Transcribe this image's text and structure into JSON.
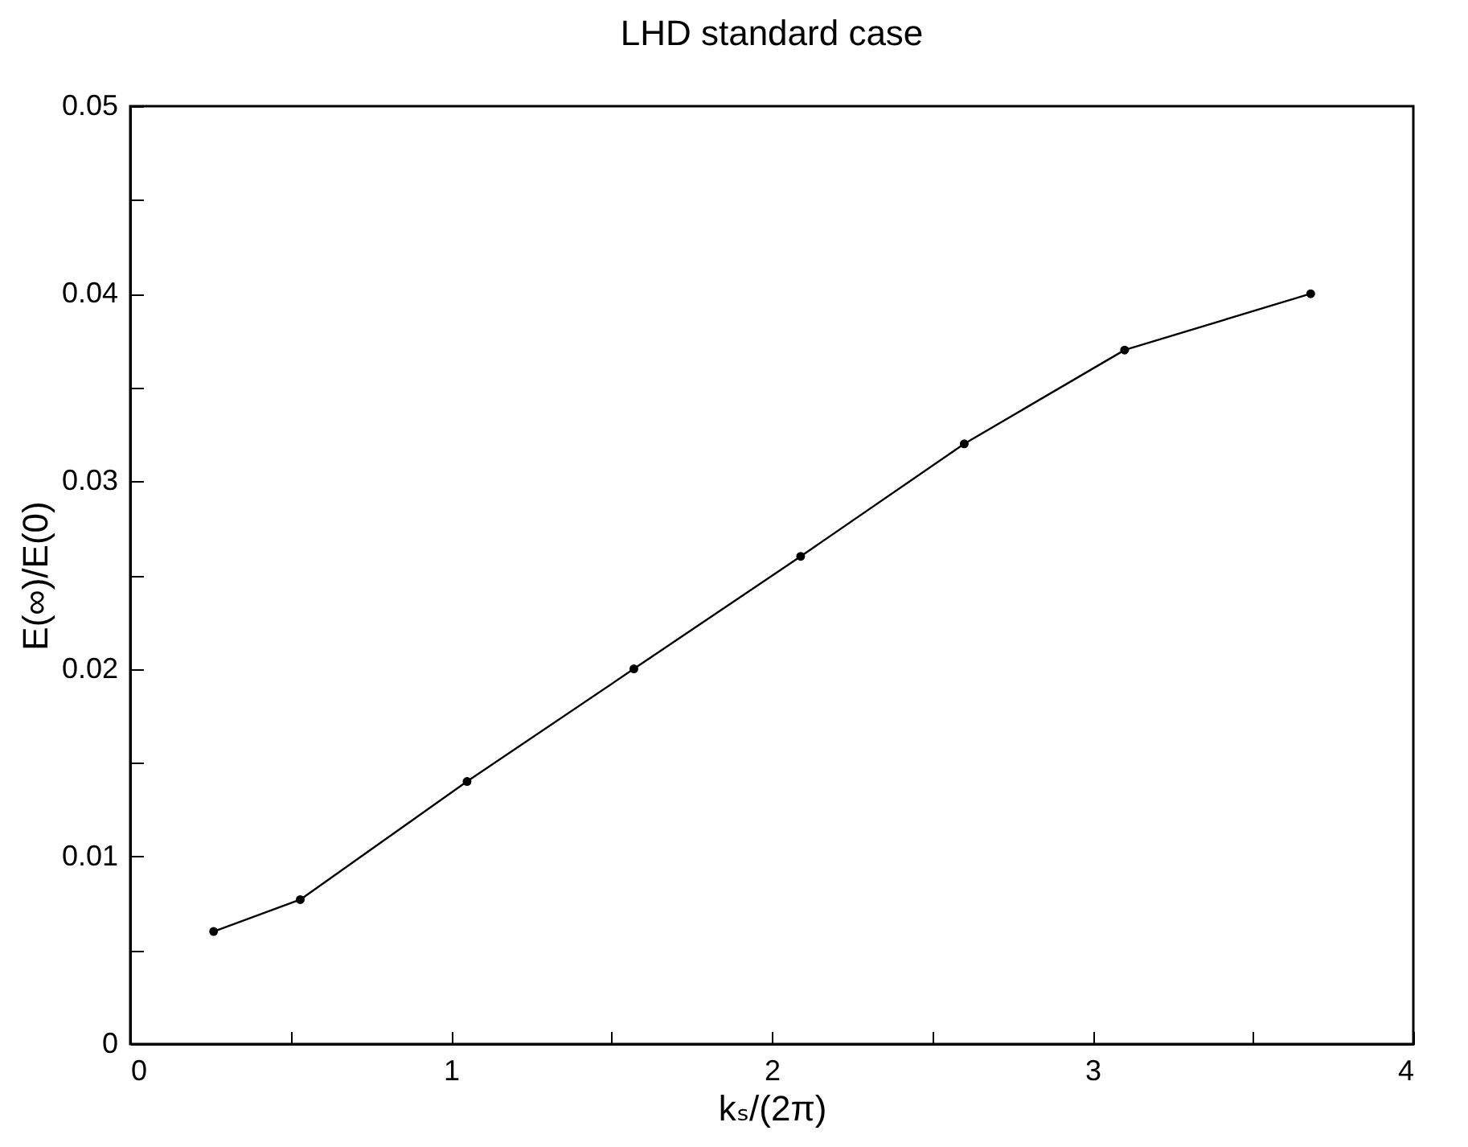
{
  "chart_data": {
    "type": "line",
    "title": "LHD standard case",
    "xlabel": "kₛ/(2π)",
    "ylabel": "E(∞)/E(0)",
    "x": [
      0.26,
      0.53,
      1.05,
      1.57,
      2.09,
      2.6,
      3.1,
      3.68
    ],
    "series": [
      {
        "color": "#000000",
        "values": [
          0.006,
          0.0077,
          0.014,
          0.02,
          0.026,
          0.032,
          0.037,
          0.04
        ]
      }
    ],
    "marker": "circle",
    "line_style": "solid",
    "grid": false,
    "legend": false,
    "xlim": [
      0,
      4
    ],
    "xticks": [
      0,
      {
        "value": 0.5,
        "label": null
      },
      1,
      {
        "value": 1.5,
        "label": null
      },
      2,
      {
        "value": 2.5,
        "label": null
      },
      3,
      {
        "value": 3.5,
        "label": null
      },
      4
    ],
    "ylim": [
      0,
      0.05
    ],
    "yticks": [
      0,
      {
        "value": 0.005,
        "label": null
      },
      0.01,
      {
        "value": 0.015,
        "label": null
      },
      0.02,
      {
        "value": 0.025,
        "label": null
      },
      0.03,
      {
        "value": 0.035,
        "label": null
      },
      0.04,
      {
        "value": 0.045,
        "label": null
      },
      0.05
    ]
  }
}
